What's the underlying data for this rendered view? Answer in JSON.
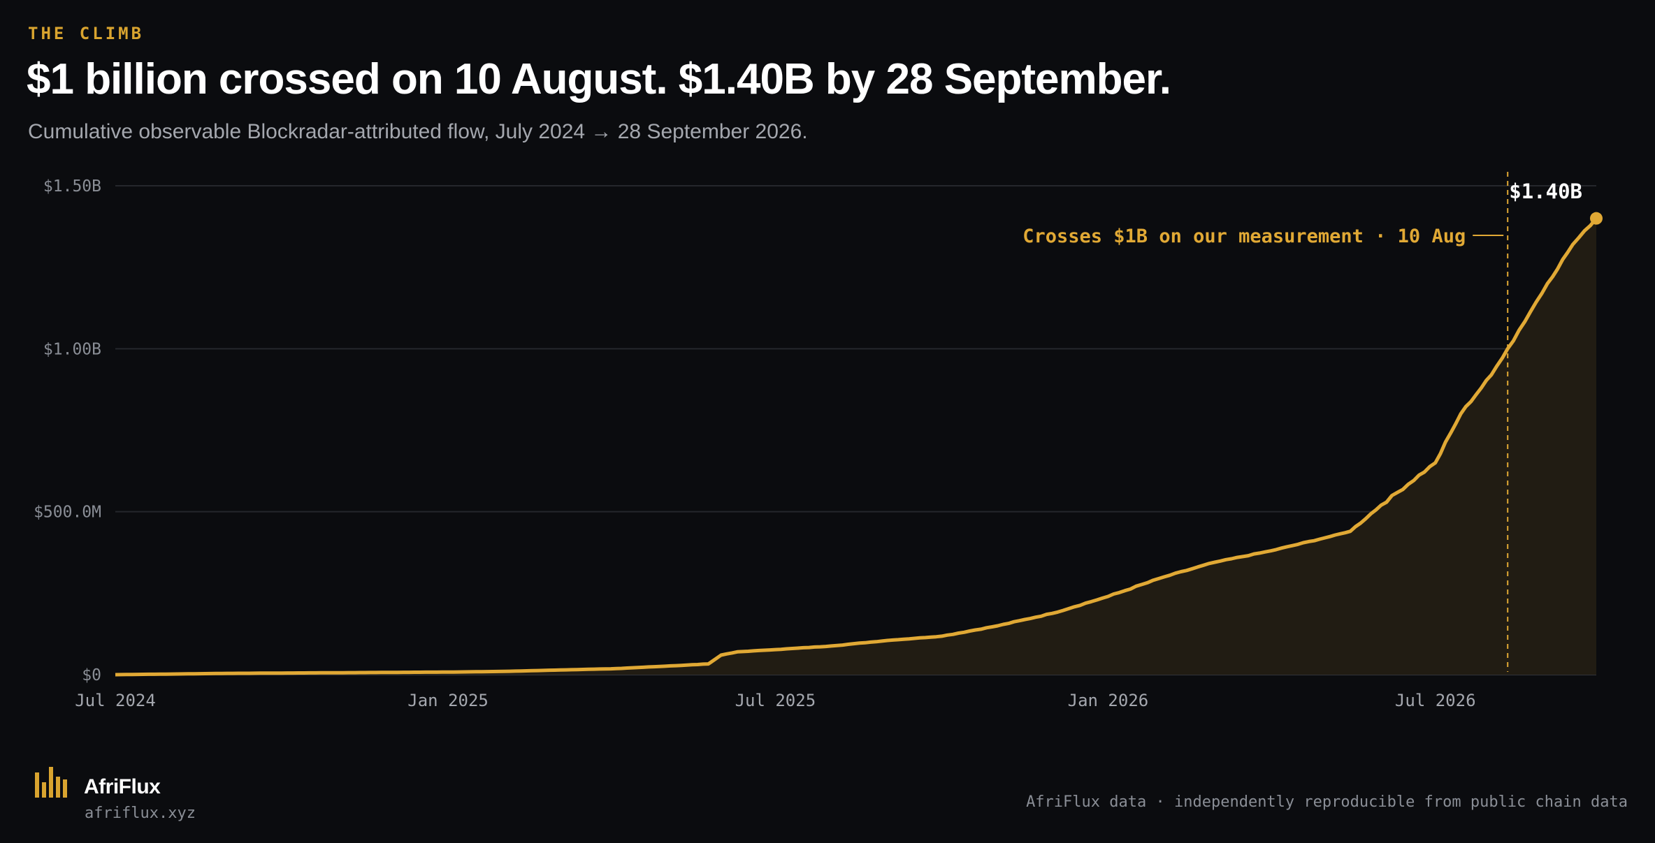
{
  "header": {
    "kicker": "THE CLIMB",
    "title": "$1 billion crossed on 10 August. $1.40B by 28 September.",
    "subtitle": "Cumulative observable Blockradar-attributed flow, July 2024 → 28 September 2026."
  },
  "chart_data": {
    "type": "area",
    "title": "$1 billion crossed on 10 August. $1.40B by 28 September.",
    "subtitle": "Cumulative observable Blockradar-attributed flow, July 2024 → 28 September 2026.",
    "xlabel": "",
    "ylabel": "",
    "xlim": [
      "2024-07-01",
      "2026-09-28"
    ],
    "ylim": [
      0,
      1500000000
    ],
    "grid": "horizontal",
    "legend": "none",
    "y_ticks": [
      {
        "value": 0,
        "label": "$0"
      },
      {
        "value": 500000000,
        "label": "$500.0M"
      },
      {
        "value": 1000000000,
        "label": "$1.00B"
      },
      {
        "value": 1500000000,
        "label": "$1.50B"
      }
    ],
    "x_ticks": [
      {
        "value": "2024-07-01",
        "label": "Jul 2024"
      },
      {
        "value": "2025-01-01",
        "label": "Jan 2025"
      },
      {
        "value": "2025-07-01",
        "label": "Jul 2025"
      },
      {
        "value": "2026-01-01",
        "label": "Jan 2026"
      },
      {
        "value": "2026-07-01",
        "label": "Jul 2026"
      }
    ],
    "series": [
      {
        "color": "#e1a935",
        "points": [
          [
            "2024-07-01",
            0
          ],
          [
            "2024-08-01",
            2000000
          ],
          [
            "2024-09-01",
            4000000
          ],
          [
            "2024-10-01",
            5000000
          ],
          [
            "2024-11-01",
            6000000
          ],
          [
            "2024-12-01",
            7000000
          ],
          [
            "2025-01-01",
            8000000
          ],
          [
            "2025-02-01",
            10000000
          ],
          [
            "2025-03-01",
            14000000
          ],
          [
            "2025-04-01",
            18000000
          ],
          [
            "2025-05-01",
            26000000
          ],
          [
            "2025-05-25",
            33000000
          ],
          [
            "2025-06-01",
            60000000
          ],
          [
            "2025-06-10",
            70000000
          ],
          [
            "2025-07-01",
            77000000
          ],
          [
            "2025-08-01",
            88000000
          ],
          [
            "2025-09-01",
            105000000
          ],
          [
            "2025-10-01",
            118000000
          ],
          [
            "2025-11-01",
            150000000
          ],
          [
            "2025-12-01",
            188000000
          ],
          [
            "2026-01-01",
            240000000
          ],
          [
            "2026-02-01",
            300000000
          ],
          [
            "2026-03-01",
            345000000
          ],
          [
            "2026-04-01",
            380000000
          ],
          [
            "2026-05-01",
            420000000
          ],
          [
            "2026-05-15",
            440000000
          ],
          [
            "2026-06-01",
            520000000
          ],
          [
            "2026-07-01",
            650000000
          ],
          [
            "2026-07-15",
            800000000
          ],
          [
            "2026-08-01",
            920000000
          ],
          [
            "2026-08-10",
            1000000000
          ],
          [
            "2026-09-01",
            1200000000
          ],
          [
            "2026-09-15",
            1320000000
          ],
          [
            "2026-09-28",
            1400000000
          ]
        ]
      }
    ],
    "marker_date": "2026-08-10",
    "annotation": "Crosses $1B on our measurement · 10 Aug",
    "end_label": "$1.40B",
    "colors": {
      "line": "#e1a935",
      "area": "#211c13",
      "grid": "#25272c",
      "marker": "#e1a935"
    }
  },
  "footer": {
    "brand_name": "AfriFlux",
    "brand_url": "afriflux.xyz",
    "note": "AfriFlux data · independently reproducible from public chain data"
  }
}
